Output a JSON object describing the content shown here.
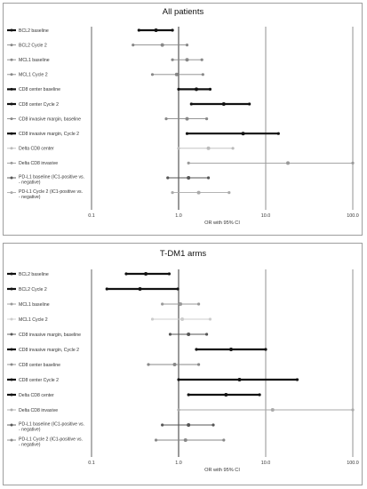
{
  "chart_data": [
    {
      "type": "forest",
      "title": "All patients",
      "xlabel": "OR with 95% CI",
      "xscale": "log",
      "xlim": [
        0.1,
        100
      ],
      "xticks": [
        "0.1",
        "1.0",
        "10.0",
        "100.0"
      ],
      "rows": [
        {
          "label": "BCL2 baseline",
          "or": 0.55,
          "lo": 0.35,
          "hi": 0.85,
          "color": "#111111",
          "bold": true
        },
        {
          "label": "BCL2 Cycle 2",
          "or": 0.65,
          "lo": 0.3,
          "hi": 1.25,
          "color": "#888888",
          "bold": false
        },
        {
          "label": "MCL1 baseline",
          "or": 1.25,
          "lo": 0.85,
          "hi": 1.85,
          "color": "#888888",
          "bold": false
        },
        {
          "label": "MCL1 Cycle 2",
          "or": 0.95,
          "lo": 0.5,
          "hi": 1.9,
          "color": "#888888",
          "bold": false
        },
        {
          "label": "CD8 center baseline",
          "or": 1.6,
          "lo": 1.0,
          "hi": 2.3,
          "color": "#111111",
          "bold": true
        },
        {
          "label": "CD8 center Cycle 2",
          "or": 3.3,
          "lo": 1.4,
          "hi": 6.5,
          "color": "#111111",
          "bold": true
        },
        {
          "label": "CD8 invasive margin, baseline",
          "or": 1.25,
          "lo": 0.72,
          "hi": 2.1,
          "color": "#888888",
          "bold": false
        },
        {
          "label": "CD8 invasive margin, Cycle 2",
          "or": 5.5,
          "lo": 1.25,
          "hi": 14.0,
          "color": "#111111",
          "bold": true
        },
        {
          "label": "Delta CD8 center",
          "or": 2.2,
          "lo": 1.0,
          "hi": 4.2,
          "color": "#bbbbbb",
          "bold": false
        },
        {
          "label": "Delta CD8 invasive",
          "or": 18.0,
          "lo": 1.3,
          "hi": 100,
          "color": "#999999",
          "bold": false
        },
        {
          "label": "PD-L1 baseline (IC1-positive vs. - negative)",
          "or": 1.3,
          "lo": 0.75,
          "hi": 2.2,
          "color": "#555555",
          "bold": false
        },
        {
          "label": "PD-L1 Cycle 2 (IC1-positive vs. - negative)",
          "or": 1.7,
          "lo": 0.85,
          "hi": 3.8,
          "color": "#aaaaaa",
          "bold": false
        }
      ]
    },
    {
      "type": "forest",
      "title": "T-DM1 arms",
      "xlabel": "OR with 95% CI",
      "xscale": "log",
      "xlim": [
        0.1,
        100
      ],
      "xticks": [
        "0.1",
        "1.0",
        "10.0",
        "100.0"
      ],
      "rows": [
        {
          "label": "BCL2 baseline",
          "or": 0.42,
          "lo": 0.25,
          "hi": 0.78,
          "color": "#111111",
          "bold": true
        },
        {
          "label": "BCL2 Cycle 2",
          "or": 0.36,
          "lo": 0.15,
          "hi": 0.98,
          "color": "#111111",
          "bold": true
        },
        {
          "label": "MCL1 baseline",
          "or": 1.05,
          "lo": 0.65,
          "hi": 1.7,
          "color": "#999999",
          "bold": false
        },
        {
          "label": "MCL1 Cycle 2",
          "or": 1.1,
          "lo": 0.5,
          "hi": 2.3,
          "color": "#cccccc",
          "bold": false
        },
        {
          "label": "CD8 invasive margin, baseline",
          "or": 1.3,
          "lo": 0.8,
          "hi": 2.1,
          "color": "#555555",
          "bold": false
        },
        {
          "label": "CD8 invasive margin, Cycle 2",
          "or": 4.0,
          "lo": 1.6,
          "hi": 10.0,
          "color": "#111111",
          "bold": true
        },
        {
          "label": "CD8 center baseline",
          "or": 0.9,
          "lo": 0.45,
          "hi": 1.7,
          "color": "#888888",
          "bold": false
        },
        {
          "label": "CD8 center Cycle 2",
          "or": 5.0,
          "lo": 1.0,
          "hi": 23.0,
          "color": "#111111",
          "bold": true
        },
        {
          "label": "Delta CD8 center",
          "or": 3.5,
          "lo": 1.3,
          "hi": 8.5,
          "color": "#111111",
          "bold": true
        },
        {
          "label": "Delta CD8 invasive",
          "or": 12.0,
          "lo": 1.0,
          "hi": 100,
          "color": "#aaaaaa",
          "bold": false
        },
        {
          "label": "PD-L1 baseline (IC1-positive vs. - negative)",
          "or": 1.3,
          "lo": 0.65,
          "hi": 2.5,
          "color": "#555555",
          "bold": false
        },
        {
          "label": "PD-L1 Cycle 2 (IC1-positive vs. - negative)",
          "or": 1.2,
          "lo": 0.55,
          "hi": 3.3,
          "color": "#888888",
          "bold": false
        }
      ]
    }
  ]
}
